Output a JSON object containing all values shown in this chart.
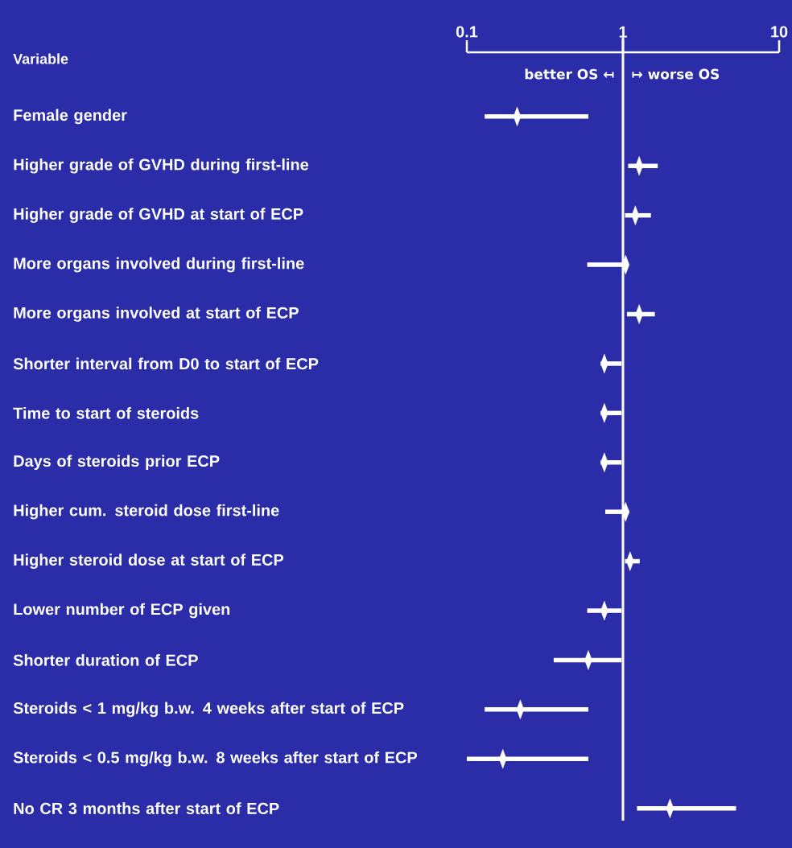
{
  "chart_data": {
    "type": "scatter",
    "orientation": "horizontal",
    "ylabel": "Variable",
    "categories": [
      "Female gender",
      "Higher grade of GVHD during first-line",
      "Higher grade of GVHD at start of ECP",
      "More organs involved during first-line",
      "More organs involved at start of ECP",
      "Shorter interval from D0 to start of ECP",
      "Time to start of steroids",
      "Days of steroids prior ECP",
      "Higher cum. steroid dose first-line",
      "Higher steroid dose at start of ECP",
      "Lower number of ECP given",
      "Shorter duration of ECP",
      "Steroids < 1 mg/kg b.w. 4 weeks after start of ECP",
      "Steroids < 0.5 mg/kg b.w. 8 weeks after start of ECP",
      "No CR 3 months after start of ECP"
    ],
    "values": [
      0.21,
      1.27,
      1.2,
      1.04,
      1.27,
      0.76,
      0.76,
      0.76,
      1.04,
      1.11,
      0.76,
      0.6,
      0.22,
      0.17,
      2.0
    ],
    "errors": [
      [
        0.13,
        0.6
      ],
      [
        1.08,
        1.67
      ],
      [
        1.03,
        1.51
      ],
      [
        0.59,
        1.06
      ],
      [
        1.06,
        1.6
      ],
      [
        0.72,
        0.98
      ],
      [
        0.72,
        0.98
      ],
      [
        0.72,
        0.98
      ],
      [
        0.77,
        1.09
      ],
      [
        1.03,
        1.28
      ],
      [
        0.59,
        0.98
      ],
      [
        0.36,
        0.98
      ],
      [
        0.13,
        0.6
      ],
      [
        0.1,
        0.6
      ],
      [
        1.23,
        5.3
      ]
    ],
    "color": "#ffffff",
    "marker": "diamond",
    "log": "x",
    "grid": false,
    "xlim": [
      0.1,
      10
    ],
    "xticks": [
      0.1,
      1,
      10
    ],
    "ref_lines": [
      {
        "axis": "x",
        "value": 1,
        "color": "#ffffff"
      }
    ],
    "annotations": [
      "better OS ↤",
      "↦ worse OS"
    ]
  }
}
